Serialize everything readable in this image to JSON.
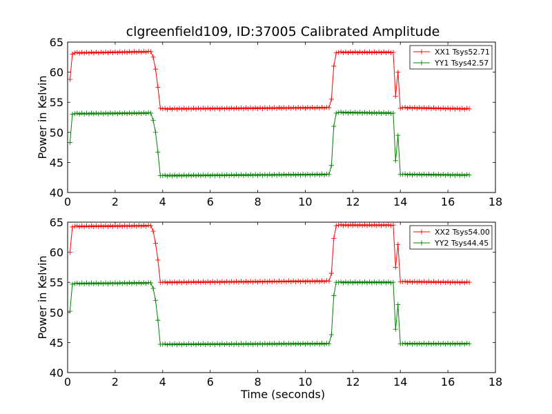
{
  "figure": {
    "title": "clgreenfield109, ID:37005 Calibrated Amplitude",
    "xlabel": "Time (seconds)"
  },
  "chart_data": [
    {
      "type": "line",
      "title": "clgreenfield109, ID:37005 Calibrated Amplitude",
      "xlabel": "",
      "ylabel": "Power in Kelvin",
      "xlim": [
        0,
        18
      ],
      "ylim": [
        40,
        65
      ],
      "xticks": [
        0,
        2,
        4,
        6,
        8,
        10,
        12,
        14,
        16,
        18
      ],
      "yticks": [
        40,
        45,
        50,
        55,
        60,
        65
      ],
      "legend_position": "top-right",
      "grid": false,
      "series": [
        {
          "name": "XX1 Tsys52.71",
          "color": "#ff0000",
          "marker": "+",
          "x": [
            0.1,
            0.2,
            0.3,
            3.5,
            3.6,
            3.7,
            3.8,
            3.9,
            4.0,
            11.0,
            11.1,
            11.2,
            11.3,
            11.4,
            13.7,
            13.8,
            13.9,
            14.0,
            14.1,
            16.9
          ],
          "y": [
            58.8,
            63.0,
            63.2,
            63.4,
            62.5,
            60.5,
            57.5,
            54.0,
            53.9,
            54.1,
            55.5,
            61.0,
            63.2,
            63.3,
            63.3,
            56.0,
            60.0,
            54.0,
            54.1,
            53.9
          ]
        },
        {
          "name": "YY1 Tsys42.57",
          "color": "#008000",
          "marker": "+",
          "x": [
            0.1,
            0.2,
            0.3,
            3.5,
            3.6,
            3.7,
            3.8,
            3.9,
            4.0,
            11.0,
            11.1,
            11.2,
            11.3,
            11.4,
            13.7,
            13.8,
            13.9,
            14.0,
            14.1,
            16.9
          ],
          "y": [
            48.3,
            53.0,
            53.1,
            53.2,
            52.0,
            50.0,
            46.7,
            42.8,
            42.8,
            43.0,
            44.5,
            51.0,
            53.2,
            53.3,
            53.2,
            45.3,
            49.5,
            43.0,
            43.0,
            42.9
          ]
        }
      ]
    },
    {
      "type": "line",
      "title": "",
      "xlabel": "Time (seconds)",
      "ylabel": "Power in Kelvin",
      "xlim": [
        0,
        18
      ],
      "ylim": [
        40,
        65
      ],
      "xticks": [
        0,
        2,
        4,
        6,
        8,
        10,
        12,
        14,
        16,
        18
      ],
      "yticks": [
        40,
        45,
        50,
        55,
        60,
        65
      ],
      "legend_position": "top-right",
      "grid": false,
      "series": [
        {
          "name": "XX2 Tsys54.00",
          "color": "#ff0000",
          "marker": "+",
          "x": [
            0.1,
            0.2,
            0.3,
            3.5,
            3.6,
            3.7,
            3.8,
            3.9,
            4.0,
            11.0,
            11.1,
            11.2,
            11.3,
            11.4,
            13.7,
            13.8,
            13.9,
            14.0,
            14.1,
            16.9
          ],
          "y": [
            60.0,
            64.2,
            64.3,
            64.4,
            63.5,
            61.5,
            58.7,
            55.0,
            55.0,
            55.2,
            56.5,
            62.3,
            64.4,
            64.5,
            64.5,
            57.5,
            61.3,
            55.1,
            55.1,
            55.0
          ]
        },
        {
          "name": "YY2 Tsys44.45",
          "color": "#008000",
          "marker": "+",
          "x": [
            0.1,
            0.2,
            0.3,
            3.5,
            3.6,
            3.7,
            3.8,
            3.9,
            4.0,
            11.0,
            11.1,
            11.2,
            11.3,
            11.4,
            13.7,
            13.8,
            13.9,
            14.0,
            14.1,
            16.9
          ],
          "y": [
            50.2,
            54.7,
            54.8,
            54.9,
            54.0,
            52.0,
            48.7,
            44.7,
            44.7,
            44.8,
            46.3,
            52.8,
            55.0,
            55.0,
            55.0,
            47.2,
            51.3,
            44.8,
            44.8,
            44.8
          ]
        }
      ]
    }
  ]
}
